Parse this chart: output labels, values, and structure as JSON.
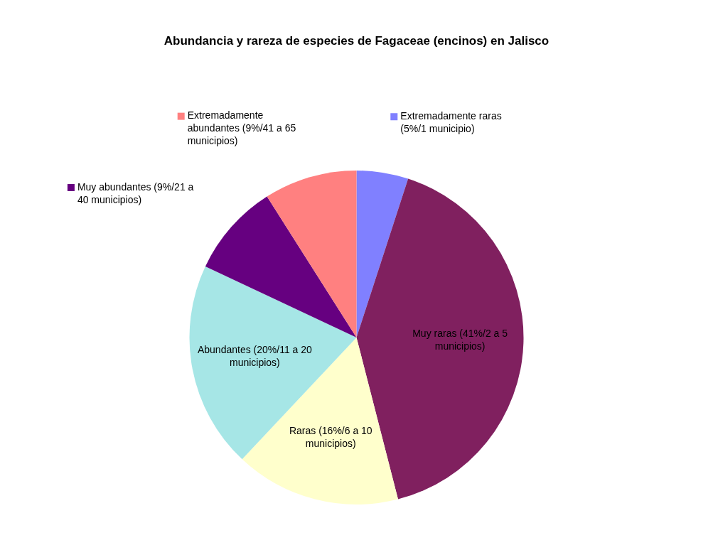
{
  "chart_data": {
    "type": "pie",
    "title": "Abundancia y rareza de especies de Fagaceae (encinos) en Jalisco",
    "categories": [
      "Extremadamente raras (5%/1 municipio)",
      "Muy raras (41%/2 a 5 municipios)",
      "Raras (16%/6 a 10 municipios)",
      "Abundantes (20%/11 a 20 municipios)",
      "Muy abundantes (9%/21 a 40 municipios)",
      "Extremadamente abundantes (9%/41 a 65 municipios)"
    ],
    "values": [
      5,
      41,
      16,
      20,
      9,
      9
    ],
    "colors": [
      "#8080ff",
      "#80205f",
      "#ffffcc",
      "#a6e6e6",
      "#660080",
      "#ff8080"
    ],
    "legend": "top"
  }
}
